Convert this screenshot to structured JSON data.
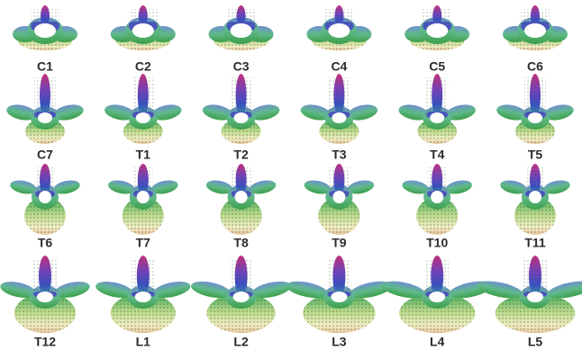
{
  "labels": [
    [
      "C1",
      "C2",
      "C3",
      "C4",
      "C5",
      "C6"
    ],
    [
      "C7",
      "T1",
      "T2",
      "T3",
      "T4",
      "T5"
    ],
    [
      "T6",
      "T7",
      "T8",
      "T9",
      "T10",
      "T11"
    ],
    [
      "T12",
      "L1",
      "L2",
      "L3",
      "L4",
      "L5"
    ]
  ]
}
